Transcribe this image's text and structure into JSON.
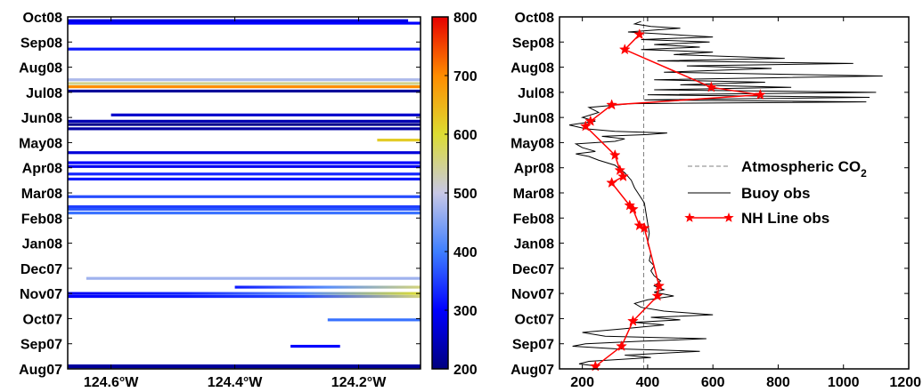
{
  "chart_data": [
    {
      "type": "heatmap",
      "title": "",
      "xlabel": "",
      "ylabel": "",
      "x_ticks": [
        "124.6°W",
        "124.4°W",
        "124.2°W"
      ],
      "x_tick_values": [
        -124.6,
        -124.4,
        -124.2
      ],
      "xlim": [
        -124.67,
        -124.1
      ],
      "y_ticks": [
        "Aug07",
        "Sep07",
        "Oct07",
        "Nov07",
        "Dec07",
        "Jan08",
        "Feb08",
        "Mar08",
        "Apr08",
        "May08",
        "Jun08",
        "Jul08",
        "Aug08",
        "Sep08",
        "Oct08"
      ],
      "ylim": [
        0,
        14
      ],
      "colorbar": {
        "ticks": [
          "200",
          "300",
          "400",
          "500",
          "600",
          "700",
          "800"
        ],
        "range": [
          200,
          800
        ],
        "colormap": [
          "#00007f",
          "#0000ff",
          "#3f7fff",
          "#c8c8e6",
          "#dcdc32",
          "#ff8c00",
          "#e60000"
        ]
      },
      "transects": [
        {
          "t": 0.12,
          "x": [
            -124.67,
            -124.1
          ],
          "value": 230
        },
        {
          "t": 0.08,
          "x": [
            -124.67,
            -124.1
          ],
          "value": 220
        },
        {
          "t": 0.9,
          "x": [
            -124.31,
            -124.23
          ],
          "value": 300
        },
        {
          "t": 1.95,
          "x": [
            -124.25,
            -124.1
          ],
          "value": 390
        },
        {
          "t": 2.88,
          "x": [
            -124.67,
            -124.1
          ],
          "value": 310,
          "grad": [
            300,
            320,
            360,
            560
          ]
        },
        {
          "t": 3.0,
          "x": [
            -124.67,
            -124.1
          ],
          "value": 300,
          "grad": [
            290,
            330,
            420,
            600
          ]
        },
        {
          "t": 3.25,
          "x": [
            -124.4,
            -124.1
          ],
          "value": 380,
          "grad": [
            320,
            420,
            560
          ]
        },
        {
          "t": 3.6,
          "x": [
            -124.64,
            -124.1
          ],
          "value": 470
        },
        {
          "t": 6.2,
          "x": [
            -124.67,
            -124.1
          ],
          "value": 390
        },
        {
          "t": 6.35,
          "x": [
            -124.67,
            -124.1
          ],
          "value": 370
        },
        {
          "t": 6.45,
          "x": [
            -124.67,
            -124.1
          ],
          "value": 350
        },
        {
          "t": 6.85,
          "x": [
            -124.67,
            -124.1
          ],
          "value": 360
        },
        {
          "t": 7.55,
          "x": [
            -124.67,
            -124.1
          ],
          "value": 320
        },
        {
          "t": 7.75,
          "x": [
            -124.67,
            -124.1
          ],
          "value": 330
        },
        {
          "t": 8.05,
          "x": [
            -124.67,
            -124.1
          ],
          "value": 290
        },
        {
          "t": 8.2,
          "x": [
            -124.67,
            -124.1
          ],
          "value": 300
        },
        {
          "t": 8.6,
          "x": [
            -124.67,
            -124.1
          ],
          "value": 270
        },
        {
          "t": 9.1,
          "x": [
            -124.17,
            -124.1
          ],
          "value": 620
        },
        {
          "t": 9.55,
          "x": [
            -124.67,
            -124.1
          ],
          "value": 230
        },
        {
          "t": 9.72,
          "x": [
            -124.67,
            -124.1
          ],
          "value": 210
        },
        {
          "t": 9.85,
          "x": [
            -124.67,
            -124.1
          ],
          "value": 240
        },
        {
          "t": 10.1,
          "x": [
            -124.6,
            -124.1
          ],
          "value": 260
        },
        {
          "t": 11.05,
          "x": [
            -124.67,
            -124.1
          ],
          "value": 220
        },
        {
          "t": 11.22,
          "x": [
            -124.67,
            -124.1
          ],
          "value": 700
        },
        {
          "t": 11.35,
          "x": [
            -124.67,
            -124.1
          ],
          "value": 550
        },
        {
          "t": 11.5,
          "x": [
            -124.67,
            -124.1
          ],
          "value": 480
        },
        {
          "t": 12.72,
          "x": [
            -124.67,
            -124.1
          ],
          "value": 320
        },
        {
          "t": 13.75,
          "x": [
            -124.67,
            -124.1
          ],
          "value": 300
        },
        {
          "t": 13.85,
          "x": [
            -124.67,
            -124.12
          ],
          "value": 280
        }
      ]
    },
    {
      "type": "line",
      "title": "",
      "xlabel": "",
      "ylabel": "",
      "x_ticks": [
        "200",
        "400",
        "600",
        "800",
        "1000",
        "1200"
      ],
      "xlim": [
        130,
        1200
      ],
      "y_ticks": [
        "Aug07",
        "Sep07",
        "Oct07",
        "Nov07",
        "Dec07",
        "Jan08",
        "Feb08",
        "Mar08",
        "Apr08",
        "May08",
        "Jun08",
        "Jul08",
        "Aug08",
        "Sep08",
        "Oct08"
      ],
      "ylim": [
        0,
        14
      ],
      "legend_position": "center-right",
      "atmospheric_co2": 388,
      "series": [
        {
          "name": "Atmospheric CO",
          "subscript": "2",
          "style": "dashed",
          "color": "#808080"
        },
        {
          "name": "Buoy obs",
          "style": "solid",
          "color": "#000000",
          "points": [
            [
              250,
              0.1
            ],
            [
              190,
              0.2
            ],
            [
              220,
              0.3
            ],
            [
              410,
              0.45
            ],
            [
              330,
              0.55
            ],
            [
              560,
              0.7
            ],
            [
              300,
              0.8
            ],
            [
              170,
              0.9
            ],
            [
              210,
              1.0
            ],
            [
              380,
              1.1
            ],
            [
              580,
              1.2
            ],
            [
              270,
              1.3
            ],
            [
              200,
              1.45
            ],
            [
              330,
              1.6
            ],
            [
              450,
              1.75
            ],
            [
              360,
              1.85
            ],
            [
              500,
              1.95
            ],
            [
              410,
              2.05
            ],
            [
              600,
              2.15
            ],
            [
              450,
              2.3
            ],
            [
              380,
              2.45
            ],
            [
              360,
              2.6
            ],
            [
              400,
              2.75
            ],
            [
              480,
              2.9
            ],
            [
              420,
              3.05
            ],
            [
              450,
              3.15
            ],
            [
              420,
              3.3
            ],
            [
              440,
              3.5
            ],
            [
              420,
              3.7
            ],
            [
              410,
              3.9
            ],
            [
              420,
              4.1
            ],
            [
              405,
              4.3
            ],
            [
              410,
              4.6
            ],
            [
              400,
              5.0
            ],
            [
              405,
              5.4
            ],
            [
              400,
              5.8
            ],
            [
              395,
              6.2
            ],
            [
              390,
              6.6
            ],
            [
              380,
              6.8
            ],
            [
              370,
              7.0
            ],
            [
              360,
              7.2
            ],
            [
              350,
              7.5
            ],
            [
              330,
              7.8
            ],
            [
              300,
              8.1
            ],
            [
              250,
              8.3
            ],
            [
              220,
              8.45
            ],
            [
              180,
              8.55
            ],
            [
              240,
              8.65
            ],
            [
              200,
              8.8
            ],
            [
              180,
              8.95
            ],
            [
              300,
              9.05
            ],
            [
              330,
              9.15
            ],
            [
              260,
              9.25
            ],
            [
              400,
              9.32
            ],
            [
              460,
              9.38
            ],
            [
              300,
              9.45
            ],
            [
              210,
              9.55
            ],
            [
              160,
              9.7
            ],
            [
              240,
              9.85
            ],
            [
              200,
              10.0
            ],
            [
              250,
              10.2
            ],
            [
              220,
              10.4
            ],
            [
              350,
              10.55
            ],
            [
              1070,
              10.62
            ],
            [
              390,
              10.7
            ],
            [
              1080,
              10.8
            ],
            [
              400,
              10.9
            ],
            [
              1100,
              11.0
            ],
            [
              420,
              11.1
            ],
            [
              840,
              11.2
            ],
            [
              500,
              11.3
            ],
            [
              760,
              11.4
            ],
            [
              420,
              11.5
            ],
            [
              1120,
              11.65
            ],
            [
              450,
              11.8
            ],
            [
              780,
              11.95
            ],
            [
              520,
              12.05
            ],
            [
              1030,
              12.15
            ],
            [
              430,
              12.25
            ],
            [
              820,
              12.35
            ],
            [
              480,
              12.5
            ],
            [
              600,
              12.6
            ],
            [
              380,
              12.7
            ],
            [
              560,
              12.8
            ],
            [
              420,
              12.9
            ],
            [
              590,
              13.0
            ],
            [
              380,
              13.1
            ],
            [
              600,
              13.2
            ],
            [
              340,
              13.4
            ],
            [
              500,
              13.55
            ],
            [
              410,
              13.62
            ],
            [
              360,
              13.72
            ],
            [
              380,
              13.82
            ]
          ]
        },
        {
          "name": "NH Line obs",
          "style": "line-star",
          "color": "#ff0000",
          "points": [
            [
              240,
              0.1
            ],
            [
              320,
              0.9
            ],
            [
              355,
              1.9
            ],
            [
              430,
              2.9
            ],
            [
              435,
              3.3
            ],
            [
              390,
              5.6
            ],
            [
              375,
              5.7
            ],
            [
              355,
              6.35
            ],
            [
              345,
              6.5
            ],
            [
              290,
              7.4
            ],
            [
              325,
              7.65
            ],
            [
              315,
              7.9
            ],
            [
              300,
              8.5
            ],
            [
              210,
              9.65
            ],
            [
              225,
              9.85
            ],
            [
              290,
              10.5
            ],
            [
              745,
              10.9
            ],
            [
              595,
              11.2
            ],
            [
              330,
              12.7
            ],
            [
              375,
              13.3
            ]
          ]
        }
      ]
    }
  ]
}
